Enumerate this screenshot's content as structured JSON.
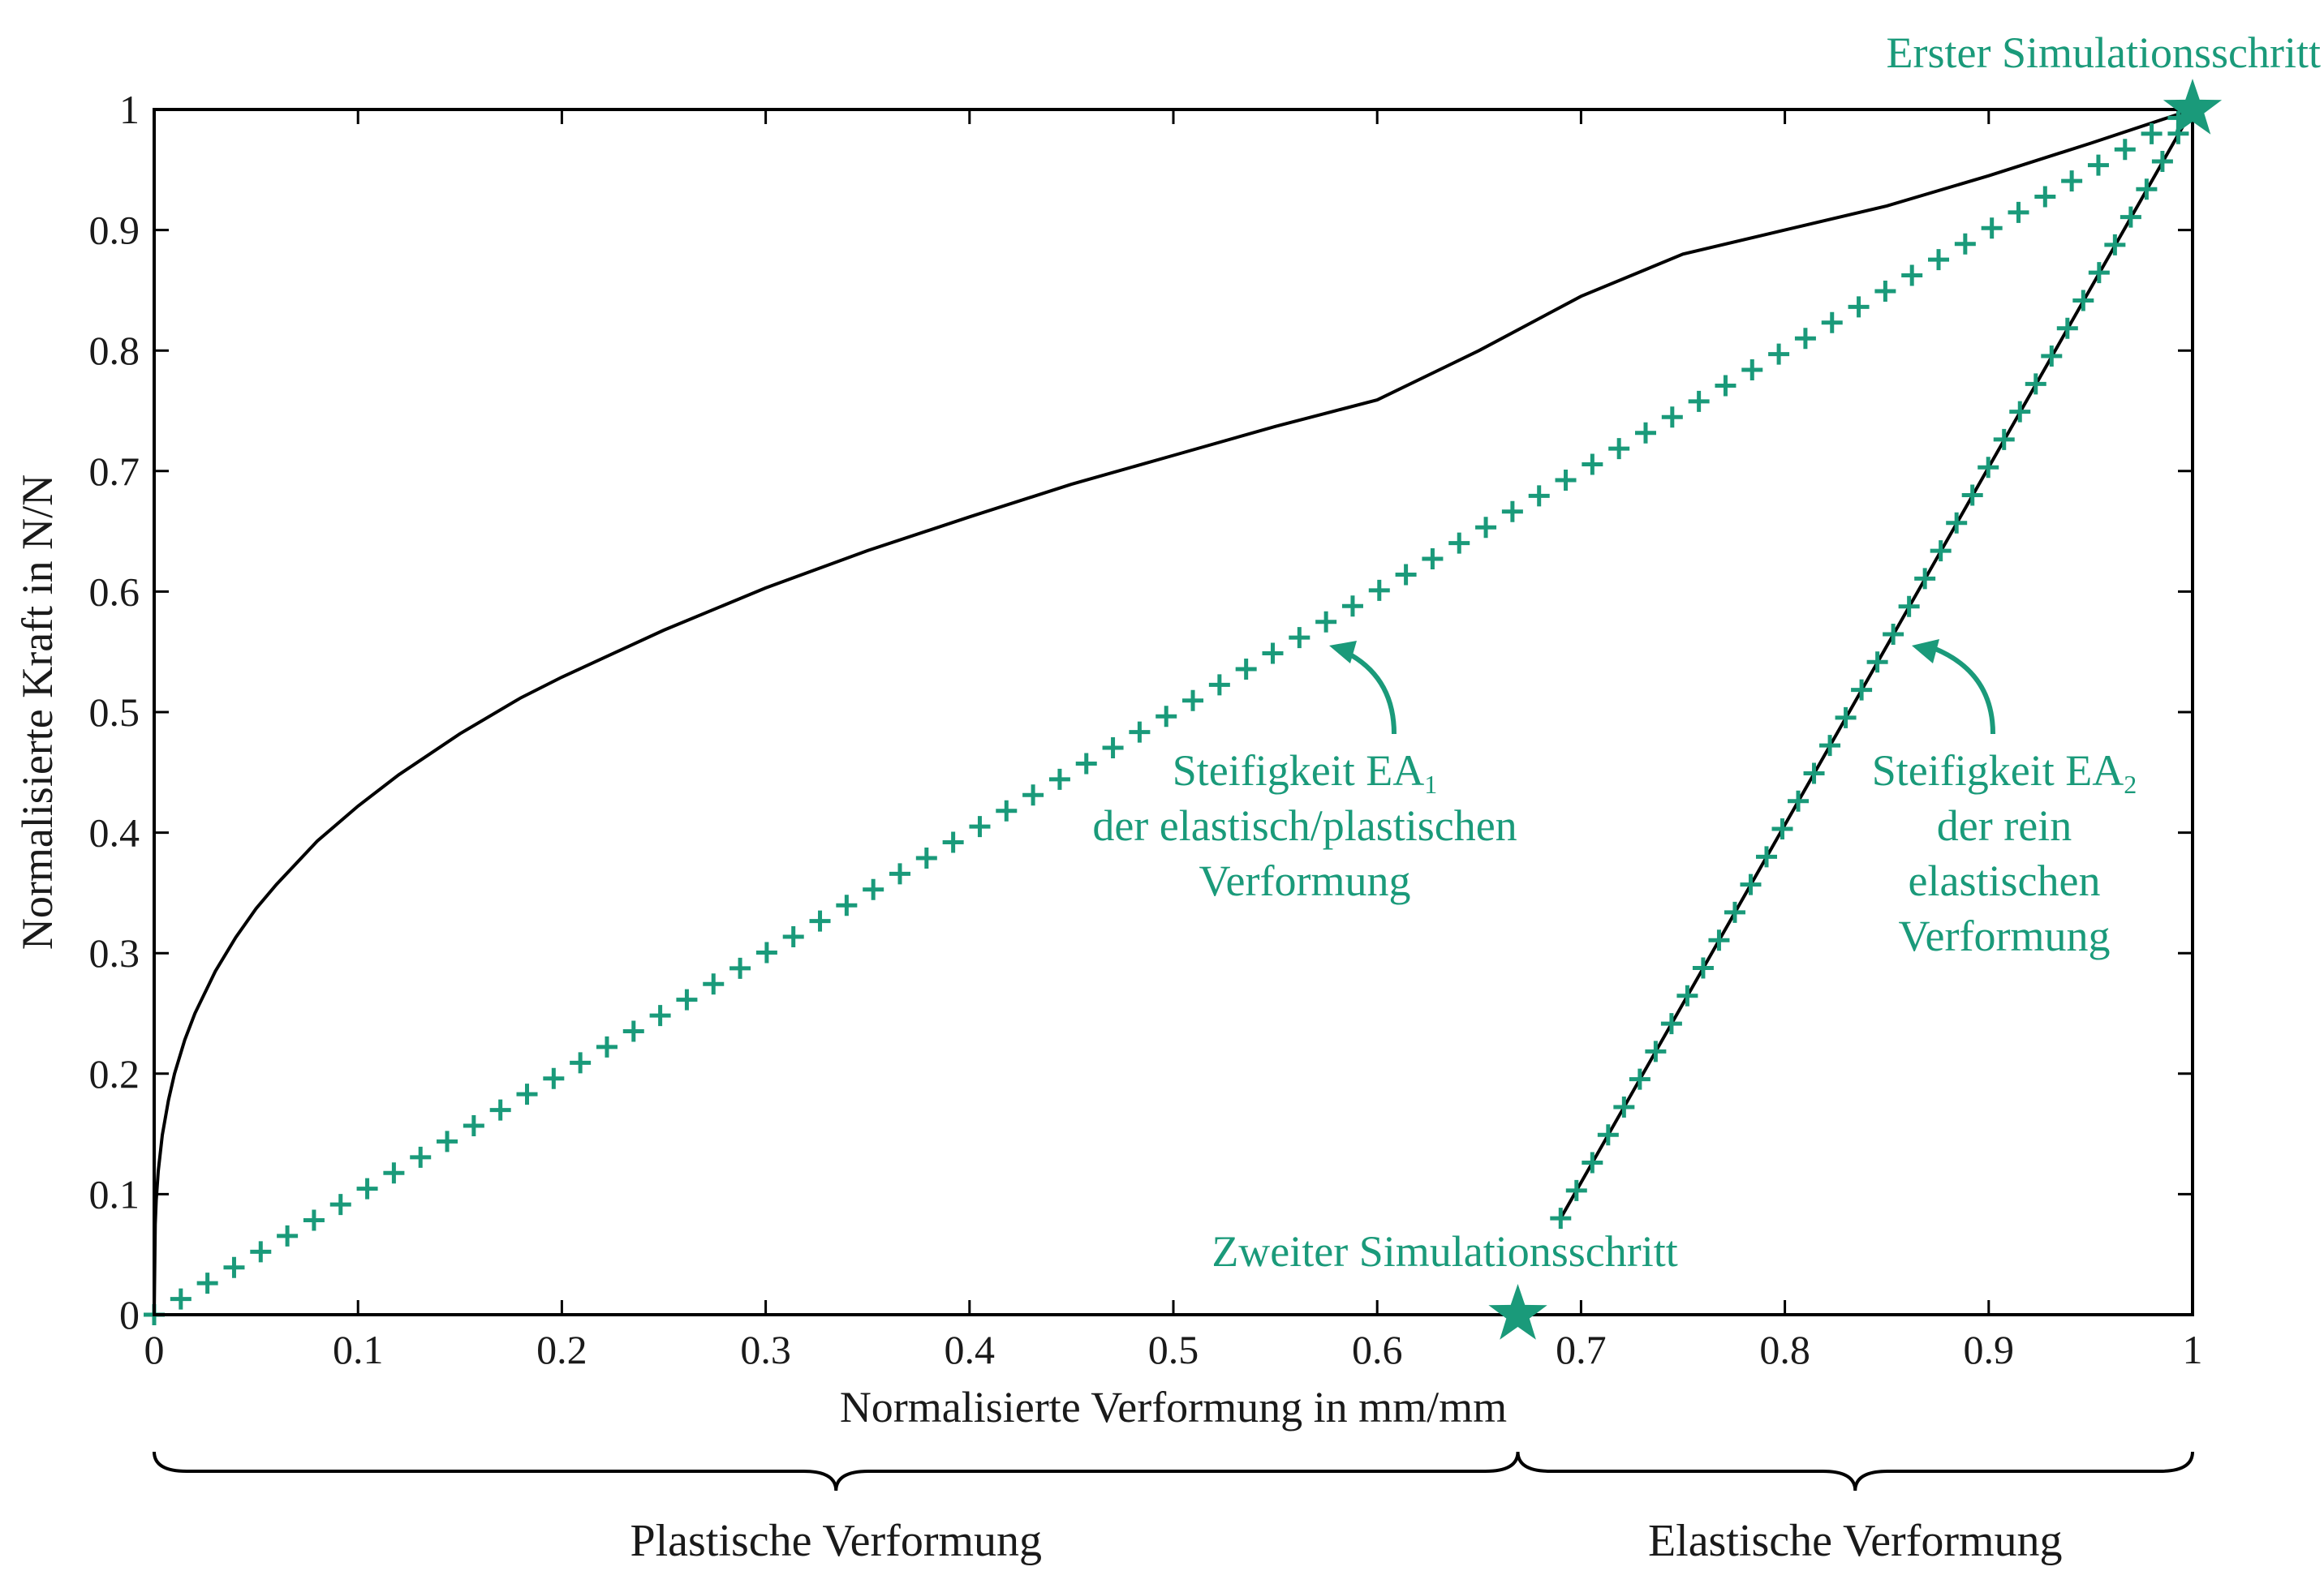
{
  "chart_data": {
    "type": "line",
    "xlabel": "Normalisierte Verformung in mm/mm",
    "ylabel": "Normalisierte Kraft in N/N",
    "xlim": [
      0,
      1
    ],
    "ylim": [
      0,
      1
    ],
    "x_ticks": [
      "0",
      "0.1",
      "0.2",
      "0.3",
      "0.4",
      "0.5",
      "0.6",
      "0.7",
      "0.8",
      "0.9",
      "1"
    ],
    "y_ticks": [
      "0",
      "0.1",
      "0.2",
      "0.3",
      "0.4",
      "0.5",
      "0.6",
      "0.7",
      "0.8",
      "0.9",
      "1"
    ],
    "grid": false,
    "colors": {
      "accent": "#1a9a7a",
      "curve": "#000000",
      "axis": "#000000"
    },
    "series": [
      {
        "style": "black-solid-curve",
        "x": [
          0,
          0.0005,
          0.001,
          0.002,
          0.004,
          0.007,
          0.01,
          0.015,
          0.02,
          0.03,
          0.04,
          0.05,
          0.06,
          0.08,
          0.1,
          0.12,
          0.15,
          0.18,
          0.2,
          0.25,
          0.3,
          0.35,
          0.4,
          0.45,
          0.5,
          0.55,
          0.6,
          0.65,
          0.7,
          0.75,
          0.8,
          0.85,
          0.9,
          0.95,
          1.0
        ],
        "y": [
          0,
          0.075,
          0.095,
          0.119,
          0.149,
          0.178,
          0.2,
          0.228,
          0.25,
          0.285,
          0.313,
          0.337,
          0.357,
          0.393,
          0.422,
          0.448,
          0.482,
          0.512,
          0.529,
          0.568,
          0.603,
          0.634,
          0.662,
          0.689,
          0.713,
          0.737,
          0.759,
          0.8,
          0.845,
          0.88,
          0.9,
          0.92,
          0.945,
          0.972,
          1.0
        ]
      },
      {
        "style": "black-solid-line",
        "x": [
          0.69,
          1.0
        ],
        "y": [
          0.08,
          1.0
        ]
      },
      {
        "style": "green-plus-markers",
        "x_from": 0,
        "x_to": 0.993,
        "y_from": 0,
        "y_to": 0.993,
        "count": 77
      },
      {
        "style": "green-plus-markers",
        "x_from": 0.69,
        "x_to": 0.993,
        "y_from": 0.08,
        "y_to": 0.98,
        "count": 40
      }
    ],
    "points": [
      {
        "label": "Erster Simulationsschritt",
        "x": 1.0,
        "y": 1.0
      },
      {
        "label": "Zweiter Simulationsschritt",
        "x": 0.669,
        "y": 0.0
      }
    ],
    "annotations": {
      "ea1": {
        "line1": "Steifigkeit EA",
        "sub": "1",
        "line2": "der elastisch/plastischen",
        "line3": "Verformung",
        "arrow_to_x": 0.575,
        "arrow_to_y": 0.555
      },
      "ea2": {
        "line1": "Steifigkeit EA",
        "sub": "2",
        "line2": "der rein",
        "line3": "elastischen",
        "line4": "Verformung",
        "arrow_to_x": 0.86,
        "arrow_to_y": 0.555
      }
    },
    "braces": [
      {
        "label": "Plastische Verformung",
        "x_from": 0,
        "x_to": 0.669
      },
      {
        "label": "Elastische Verformung",
        "x_from": 0.669,
        "x_to": 1.0
      }
    ]
  }
}
